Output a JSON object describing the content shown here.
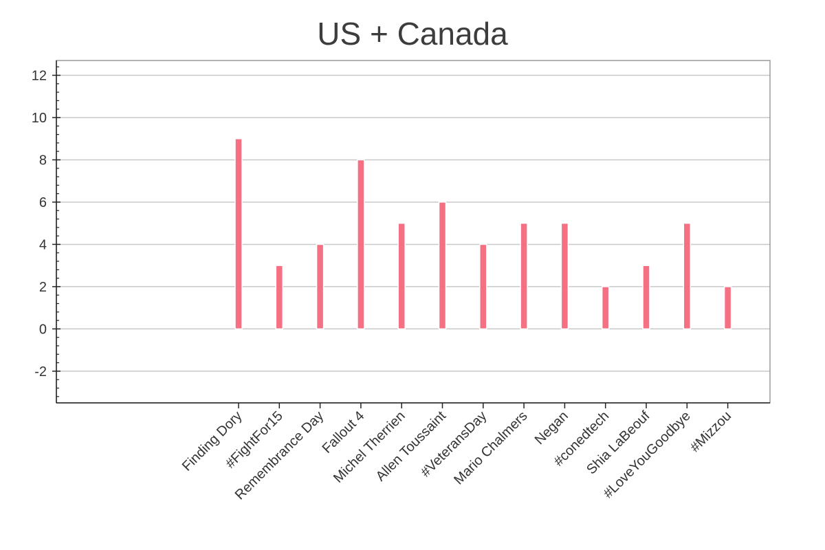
{
  "chart_data": {
    "type": "bar",
    "title": "US + Canada",
    "xlabel": "",
    "ylabel": "",
    "categories": [
      "Finding Dory",
      "#FightFor15",
      "Remembrance Day",
      "Fallout 4",
      "Michel Therrien",
      "Allen Toussaint",
      "#VeteransDay",
      "Mario Chalmers",
      "Negan",
      "#conedtech",
      "Shia LaBeouf",
      "#LoveYouGoodbye",
      "#Mizzou"
    ],
    "values": [
      9,
      3,
      4,
      8,
      5,
      6,
      4,
      5,
      5,
      2,
      3,
      5,
      2
    ],
    "ylim": [
      -3.5,
      12.7
    ],
    "yticks": [
      -2,
      0,
      2,
      4,
      6,
      8,
      10,
      12
    ],
    "ytick_labels": [
      "-2",
      "0",
      "2",
      "4",
      "6",
      "8",
      "10",
      "12"
    ],
    "grid": true,
    "bar_color": "#f4687b"
  }
}
